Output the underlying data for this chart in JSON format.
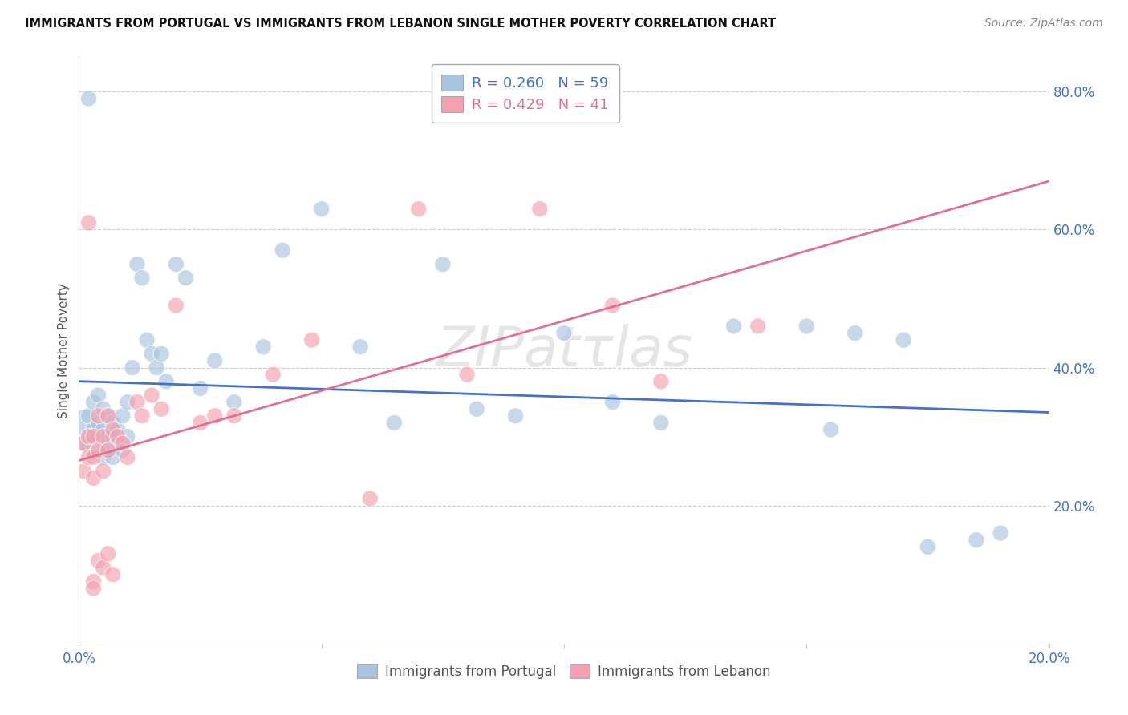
{
  "title": "IMMIGRANTS FROM PORTUGAL VS IMMIGRANTS FROM LEBANON SINGLE MOTHER POVERTY CORRELATION CHART",
  "source": "Source: ZipAtlas.com",
  "ylabel": "Single Mother Poverty",
  "xlim": [
    0.0,
    0.2
  ],
  "ylim": [
    0.0,
    0.85
  ],
  "xtick_positions": [
    0.0,
    0.05,
    0.1,
    0.15,
    0.2
  ],
  "xtick_labels": [
    "0.0%",
    "",
    "",
    "",
    "20.0%"
  ],
  "ytick_positions": [
    0.2,
    0.4,
    0.6,
    0.8
  ],
  "ytick_labels": [
    "20.0%",
    "40.0%",
    "60.0%",
    "80.0%"
  ],
  "legend_R1": "0.260",
  "legend_N1": "59",
  "legend_R2": "0.429",
  "legend_N2": "41",
  "color_portugal": "#a8c4e0",
  "color_lebanon": "#f4a0b0",
  "color_line_portugal": "#4472c4",
  "color_line_lebanon": "#e07090",
  "color_ticks": "#4472c4",
  "portugal_x": [
    0.001,
    0.001,
    0.002,
    0.002,
    0.003,
    0.003,
    0.003,
    0.004,
    0.004,
    0.004,
    0.005,
    0.005,
    0.005,
    0.005,
    0.006,
    0.006,
    0.006,
    0.007,
    0.007,
    0.007,
    0.008,
    0.008,
    0.009,
    0.009,
    0.01,
    0.01,
    0.011,
    0.012,
    0.013,
    0.014,
    0.015,
    0.016,
    0.017,
    0.018,
    0.02,
    0.022,
    0.025,
    0.028,
    0.032,
    0.038,
    0.042,
    0.05,
    0.058,
    0.065,
    0.075,
    0.082,
    0.09,
    0.1,
    0.11,
    0.12,
    0.135,
    0.15,
    0.155,
    0.16,
    0.17,
    0.175,
    0.185,
    0.19,
    0.002
  ],
  "portugal_y": [
    0.32,
    0.29,
    0.3,
    0.33,
    0.31,
    0.28,
    0.35,
    0.3,
    0.32,
    0.36,
    0.27,
    0.29,
    0.31,
    0.34,
    0.3,
    0.28,
    0.33,
    0.27,
    0.3,
    0.32,
    0.29,
    0.31,
    0.28,
    0.33,
    0.3,
    0.35,
    0.4,
    0.55,
    0.53,
    0.44,
    0.42,
    0.4,
    0.42,
    0.38,
    0.55,
    0.53,
    0.37,
    0.41,
    0.35,
    0.43,
    0.57,
    0.63,
    0.43,
    0.32,
    0.55,
    0.34,
    0.33,
    0.45,
    0.35,
    0.32,
    0.46,
    0.46,
    0.31,
    0.45,
    0.44,
    0.14,
    0.15,
    0.16,
    0.79
  ],
  "portugal_sizes": [
    80,
    30,
    30,
    30,
    30,
    30,
    30,
    30,
    30,
    30,
    30,
    30,
    30,
    30,
    30,
    30,
    30,
    30,
    30,
    30,
    30,
    30,
    30,
    30,
    30,
    30,
    30,
    30,
    30,
    30,
    30,
    30,
    30,
    30,
    30,
    30,
    30,
    30,
    30,
    30,
    30,
    30,
    30,
    30,
    30,
    30,
    30,
    30,
    30,
    30,
    30,
    30,
    30,
    30,
    30,
    30,
    30,
    30,
    30
  ],
  "lebanon_x": [
    0.001,
    0.001,
    0.002,
    0.002,
    0.003,
    0.003,
    0.003,
    0.004,
    0.004,
    0.005,
    0.005,
    0.006,
    0.006,
    0.007,
    0.008,
    0.009,
    0.01,
    0.012,
    0.013,
    0.015,
    0.017,
    0.02,
    0.025,
    0.028,
    0.032,
    0.04,
    0.048,
    0.06,
    0.07,
    0.08,
    0.095,
    0.11,
    0.12,
    0.14,
    0.003,
    0.004,
    0.005,
    0.006,
    0.007,
    0.002,
    0.003
  ],
  "lebanon_y": [
    0.29,
    0.25,
    0.27,
    0.3,
    0.24,
    0.27,
    0.3,
    0.33,
    0.28,
    0.3,
    0.25,
    0.28,
    0.33,
    0.31,
    0.3,
    0.29,
    0.27,
    0.35,
    0.33,
    0.36,
    0.34,
    0.49,
    0.32,
    0.33,
    0.33,
    0.39,
    0.44,
    0.21,
    0.63,
    0.39,
    0.63,
    0.49,
    0.38,
    0.46,
    0.09,
    0.12,
    0.11,
    0.13,
    0.1,
    0.61,
    0.08
  ],
  "lebanon_sizes": [
    30,
    30,
    30,
    30,
    30,
    30,
    30,
    30,
    30,
    30,
    30,
    30,
    30,
    30,
    30,
    30,
    30,
    30,
    30,
    30,
    30,
    30,
    30,
    30,
    30,
    30,
    30,
    30,
    30,
    30,
    30,
    30,
    30,
    30,
    30,
    30,
    30,
    30,
    30,
    30,
    30
  ],
  "watermark": "ZIPat las",
  "legend_bottom": [
    {
      "label": "Immigrants from Portugal",
      "color": "#a8c4e0"
    },
    {
      "label": "Immigrants from Lebanon",
      "color": "#f4a0b0"
    }
  ]
}
